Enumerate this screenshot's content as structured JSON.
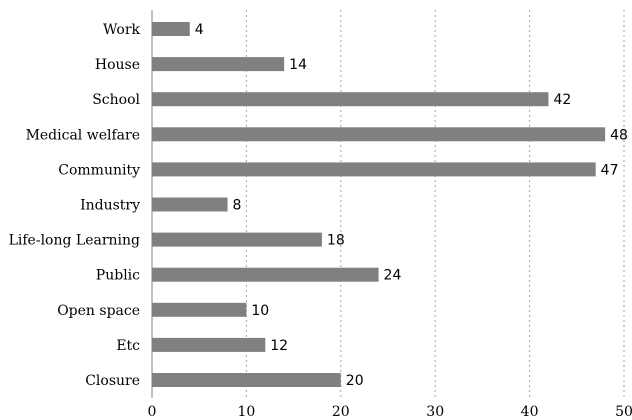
{
  "chart_data": {
    "type": "bar",
    "orientation": "horizontal",
    "categories": [
      "Work",
      "House",
      "School",
      "Medical welfare",
      "Community",
      "Industry",
      "Life-long Learning",
      "Public",
      "Open space",
      "Etc",
      "Closure"
    ],
    "values": [
      4,
      14,
      42,
      48,
      47,
      8,
      18,
      24,
      10,
      12,
      20
    ],
    "data_labels": [
      "4",
      "14",
      "42",
      "48",
      "47",
      "8",
      "18",
      "24",
      "10",
      "12",
      "20"
    ],
    "xticks": [
      "0",
      "10",
      "20",
      "30",
      "40",
      "50"
    ],
    "xlim": [
      0,
      50
    ],
    "grid": true,
    "bar_color": "#808080"
  }
}
